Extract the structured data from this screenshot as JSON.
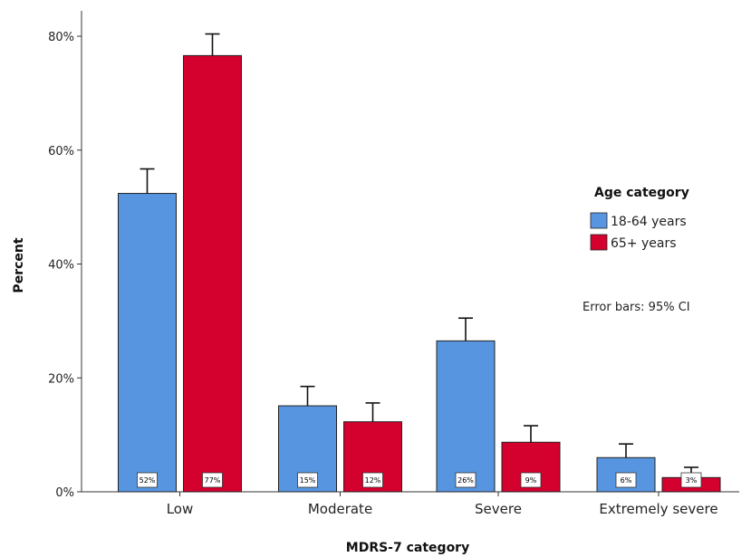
{
  "chart_data": {
    "type": "bar",
    "categories": [
      "Low",
      "Moderate",
      "Severe",
      "Extremely severe"
    ],
    "series": [
      {
        "name": "18-64 years",
        "color": "#5795e0",
        "values": [
          52.4,
          15.1,
          26.5,
          6.0
        ],
        "ci_upper": [
          56.7,
          18.5,
          30.5,
          8.4
        ],
        "labels": [
          "52%",
          "15%",
          "26%",
          "6%"
        ]
      },
      {
        "name": "65+ years",
        "color": "#d4002e",
        "values": [
          76.6,
          12.3,
          8.7,
          2.5
        ],
        "ci_upper": [
          80.4,
          15.6,
          11.6,
          4.3
        ],
        "labels": [
          "77%",
          "12%",
          "9%",
          "3%"
        ]
      }
    ],
    "xlabel": "MDRS-7 category",
    "ylabel": "Percent",
    "ylim": [
      0,
      85
    ],
    "yticks": [
      0,
      20,
      40,
      60,
      80
    ],
    "ytick_labels": [
      "0%",
      "20%",
      "40%",
      "60%",
      "80%"
    ],
    "legend": {
      "title": "Age category",
      "placement": "right"
    },
    "note": "Error bars: 95% CI",
    "grid": false
  }
}
